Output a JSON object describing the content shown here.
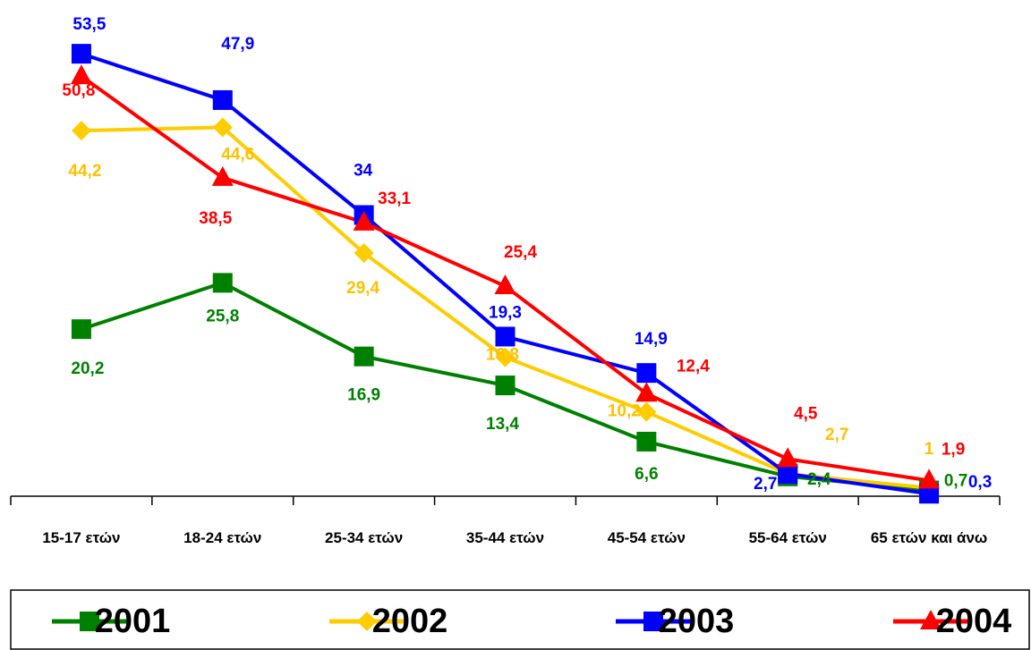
{
  "chart_data": {
    "type": "line",
    "categories": [
      "15-17 ετών",
      "18-24 ετών",
      "25-34 ετών",
      "35-44 ετών",
      "45-54 ετών",
      "55-64 ετών",
      "65 ετών και άνω"
    ],
    "ylim": [
      0,
      60
    ],
    "legend": "bottom",
    "series": [
      {
        "name": "2001",
        "color": "#008000",
        "marker": "square",
        "values": [
          20.2,
          25.8,
          16.9,
          13.4,
          6.6,
          2.4,
          0.7
        ],
        "value_labels": [
          "20,2",
          "25,8",
          "16,9",
          "13,4",
          "6,6",
          "2,4",
          "0,7"
        ]
      },
      {
        "name": "2002",
        "color": "#ffcc00",
        "marker": "diamond",
        "values": [
          44.2,
          44.6,
          29.4,
          16.8,
          10.2,
          2.7,
          1
        ],
        "value_labels": [
          "44,2",
          "44,6",
          "29,4",
          "16,8",
          "10,2",
          "2,7",
          "1"
        ]
      },
      {
        "name": "2003",
        "color": "#0000ff",
        "marker": "square",
        "values": [
          53.5,
          47.9,
          34,
          19.3,
          14.9,
          2.7,
          0.3
        ],
        "value_labels": [
          "53,5",
          "47,9",
          "34",
          "19,3",
          "14,9",
          "2,7",
          "0,3"
        ]
      },
      {
        "name": "2004",
        "color": "#ff0000",
        "marker": "triangle",
        "values": [
          50.8,
          38.5,
          33.1,
          25.4,
          12.4,
          4.5,
          1.9
        ],
        "value_labels": [
          "50,8",
          "38,5",
          "33,1",
          "25,4",
          "12,4",
          "4,5",
          "1,9"
        ]
      }
    ]
  }
}
